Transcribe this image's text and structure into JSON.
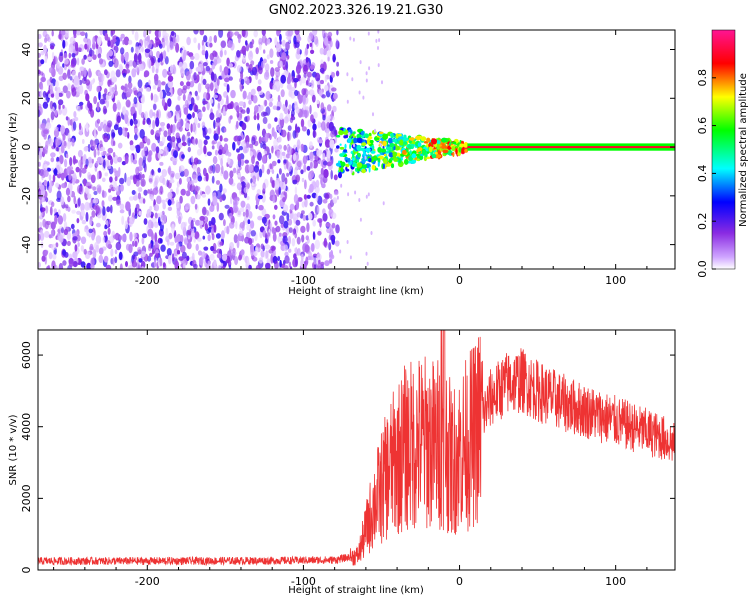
{
  "title": "GN02.2023.326.19.21.G30",
  "chart_data": [
    {
      "type": "heatmap",
      "xlabel": "Height of straight line (km)",
      "ylabel": "Frequency (Hz)",
      "xlim": [
        -270,
        138
      ],
      "ylim": [
        -50,
        48
      ],
      "xticks": [
        -200,
        -100,
        0,
        100
      ],
      "yticks": [
        -40,
        -20,
        0,
        20,
        40
      ],
      "colorbar": {
        "label": "Normalized spectral amplitude",
        "range": [
          0,
          1
        ],
        "ticks": [
          0.0,
          0.2,
          0.4,
          0.6,
          0.8
        ],
        "colormap": "rainbow",
        "colors": [
          "#ffffff",
          "#8a2be2",
          "#0000ff",
          "#00ffff",
          "#00ff00",
          "#ffff00",
          "#ff0000",
          "#ff1493"
        ]
      },
      "regions": [
        {
          "x_range": [
            -270,
            -78
          ],
          "description_level": 0.15
        },
        {
          "x_range": [
            -78,
            5
          ],
          "frequency_center": 0,
          "level": 0.4
        },
        {
          "x_range": [
            5,
            138
          ],
          "frequency_center": 0,
          "level": 0.9
        }
      ],
      "grid": false
    },
    {
      "type": "line",
      "xlabel": "Height of straight line (km)",
      "ylabel": "SNR (10 * v/v)",
      "xlim": [
        -270,
        138
      ],
      "ylim": [
        0,
        6700
      ],
      "xticks": [
        -200,
        -100,
        0,
        100
      ],
      "yticks": [
        0,
        2000,
        4000,
        6000
      ],
      "color": "#ee3333",
      "x": [
        -270,
        -200,
        -120,
        -80,
        -65,
        -55,
        -45,
        -35,
        -25,
        -15,
        -10,
        -5,
        0,
        10,
        20,
        30,
        40,
        50,
        70,
        90,
        110,
        130,
        138
      ],
      "y": [
        250,
        250,
        260,
        280,
        400,
        1800,
        2800,
        3400,
        3600,
        3500,
        3700,
        3000,
        3300,
        3800,
        4800,
        5200,
        5300,
        5000,
        4600,
        4300,
        4000,
        3700,
        3500
      ],
      "grid": false
    }
  ]
}
